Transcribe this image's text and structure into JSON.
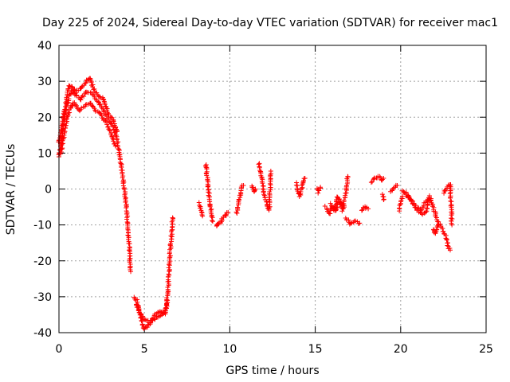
{
  "chart_data": {
    "type": "scatter",
    "title": "Day 225 of 2024, Sidereal Day-to-day VTEC variation (SDTVAR) for receiver mac1",
    "xlabel": "GPS time / hours",
    "ylabel": "SDTVAR / TECUs",
    "xlim": [
      0,
      25
    ],
    "ylim": [
      -40,
      40
    ],
    "xticks": [
      "0",
      "5",
      "10",
      "15",
      "20",
      "25"
    ],
    "yticks": [
      "-40",
      "-30",
      "-20",
      "-10",
      "0",
      "10",
      "20",
      "30",
      "40"
    ],
    "grid": true,
    "marker": "+",
    "series_color": "#ff0000",
    "series": [
      {
        "name": "SDTVAR",
        "curves": [
          [
            [
              0.0,
              9
            ],
            [
              0.1,
              12
            ],
            [
              0.25,
              17
            ],
            [
              0.4,
              22
            ],
            [
              0.6,
              26
            ],
            [
              0.8,
              27.5
            ],
            [
              1.0,
              26
            ],
            [
              1.3,
              25
            ],
            [
              1.6,
              27
            ],
            [
              1.9,
              26.5
            ],
            [
              2.2,
              25
            ],
            [
              2.5,
              23
            ],
            [
              2.8,
              20
            ],
            [
              3.1,
              18
            ],
            [
              3.4,
              14
            ],
            [
              3.6,
              8
            ],
            [
              3.8,
              1
            ],
            [
              3.95,
              -5
            ],
            [
              4.05,
              -12
            ],
            [
              4.15,
              -18
            ],
            [
              4.2,
              -23
            ]
          ],
          [
            [
              0.0,
              13
            ],
            [
              0.2,
              18
            ],
            [
              0.4,
              24
            ],
            [
              0.6,
              29
            ],
            [
              0.8,
              28
            ],
            [
              1.0,
              27
            ],
            [
              1.3,
              28
            ],
            [
              1.6,
              30
            ],
            [
              1.8,
              31
            ],
            [
              2.0,
              28
            ],
            [
              2.3,
              26
            ],
            [
              2.6,
              25
            ],
            [
              2.9,
              21
            ],
            [
              3.2,
              19
            ],
            [
              3.4,
              16
            ]
          ],
          [
            [
              0.1,
              10
            ],
            [
              0.3,
              15
            ],
            [
              0.5,
              20
            ],
            [
              0.7,
              23
            ],
            [
              0.9,
              24
            ],
            [
              1.2,
              22
            ],
            [
              1.5,
              23
            ],
            [
              1.8,
              24
            ],
            [
              2.1,
              22
            ],
            [
              2.4,
              21
            ],
            [
              2.7,
              19
            ],
            [
              3.0,
              16
            ],
            [
              3.3,
              12
            ]
          ],
          [
            [
              4.4,
              -30
            ],
            [
              4.55,
              -31
            ],
            [
              4.7,
              -34
            ],
            [
              4.85,
              -37
            ],
            [
              5.0,
              -39
            ],
            [
              5.2,
              -38
            ],
            [
              5.5,
              -36.5
            ],
            [
              5.8,
              -35.5
            ],
            [
              6.1,
              -34.5
            ],
            [
              6.3,
              -33
            ],
            [
              6.4,
              -26
            ],
            [
              6.5,
              -18
            ],
            [
              6.6,
              -12
            ],
            [
              6.65,
              -8
            ]
          ],
          [
            [
              4.5,
              -32
            ],
            [
              4.8,
              -35
            ],
            [
              5.0,
              -36.5
            ],
            [
              5.3,
              -37
            ],
            [
              5.6,
              -35
            ],
            [
              5.9,
              -34
            ],
            [
              6.2,
              -35
            ],
            [
              6.35,
              -31
            ]
          ],
          [
            [
              8.2,
              -4
            ],
            [
              8.3,
              -6
            ],
            [
              8.4,
              -7.5
            ]
          ],
          [
            [
              8.6,
              7
            ],
            [
              8.7,
              2
            ],
            [
              8.8,
              -2
            ],
            [
              8.9,
              -6
            ],
            [
              9.0,
              -9
            ]
          ],
          [
            [
              9.2,
              -10.5
            ],
            [
              9.4,
              -9.5
            ],
            [
              9.6,
              -8
            ],
            [
              9.8,
              -7
            ],
            [
              9.9,
              -6.5
            ]
          ],
          [
            [
              10.4,
              -7
            ],
            [
              10.5,
              -4
            ],
            [
              10.6,
              -2
            ],
            [
              10.7,
              0.5
            ],
            [
              10.8,
              1
            ]
          ],
          [
            [
              11.3,
              1
            ],
            [
              11.4,
              -1
            ],
            [
              11.5,
              0
            ]
          ],
          [
            [
              11.7,
              7
            ],
            [
              11.8,
              5
            ],
            [
              11.9,
              2
            ],
            [
              12.0,
              -1
            ],
            [
              12.1,
              -3
            ],
            [
              12.2,
              -5
            ],
            [
              12.3,
              -6
            ],
            [
              12.4,
              5
            ]
          ],
          [
            [
              13.9,
              1.5
            ],
            [
              14.0,
              -0.5
            ],
            [
              14.1,
              -2
            ],
            [
              14.2,
              0
            ],
            [
              14.3,
              2
            ],
            [
              14.4,
              3
            ]
          ],
          [
            [
              15.1,
              0
            ],
            [
              15.2,
              -1
            ],
            [
              15.3,
              0.5
            ]
          ],
          [
            [
              15.6,
              -5
            ],
            [
              15.8,
              -7
            ],
            [
              16.0,
              -5
            ],
            [
              16.2,
              -6
            ],
            [
              16.4,
              -3
            ],
            [
              16.6,
              -6
            ],
            [
              16.8,
              -1
            ],
            [
              16.9,
              3.5
            ]
          ],
          [
            [
              15.9,
              -4
            ],
            [
              16.1,
              -6
            ],
            [
              16.3,
              -2
            ],
            [
              16.5,
              -4
            ],
            [
              16.7,
              -5
            ]
          ],
          [
            [
              16.8,
              -8
            ],
            [
              17.0,
              -9.5
            ],
            [
              17.3,
              -9
            ],
            [
              17.6,
              -9.5
            ]
          ],
          [
            [
              17.7,
              -6
            ],
            [
              17.9,
              -5
            ],
            [
              18.1,
              -5.5
            ]
          ],
          [
            [
              18.3,
              2
            ],
            [
              18.5,
              3
            ],
            [
              18.7,
              3.5
            ],
            [
              18.9,
              2.5
            ],
            [
              19.0,
              3
            ]
          ],
          [
            [
              18.95,
              -1.5
            ],
            [
              19.0,
              -3
            ]
          ],
          [
            [
              19.4,
              -0.5
            ],
            [
              19.6,
              0
            ],
            [
              19.8,
              1
            ]
          ],
          [
            [
              19.9,
              -6
            ],
            [
              20.0,
              -4
            ],
            [
              20.1,
              -2
            ]
          ],
          [
            [
              20.1,
              -0.5
            ],
            [
              20.4,
              -2
            ],
            [
              20.7,
              -4
            ],
            [
              21.0,
              -6
            ],
            [
              21.3,
              -7
            ],
            [
              21.5,
              -6
            ],
            [
              21.7,
              -2
            ],
            [
              21.9,
              -5
            ],
            [
              22.1,
              -8
            ],
            [
              22.3,
              -10
            ],
            [
              22.5,
              -12
            ],
            [
              22.7,
              -14
            ],
            [
              22.8,
              -16.5
            ],
            [
              22.9,
              -17
            ]
          ],
          [
            [
              20.3,
              -1
            ],
            [
              20.6,
              -3
            ],
            [
              20.9,
              -5
            ],
            [
              21.2,
              -6
            ],
            [
              21.4,
              -4
            ],
            [
              21.6,
              -3
            ]
          ],
          [
            [
              21.9,
              -11
            ],
            [
              22.0,
              -12.5
            ],
            [
              22.2,
              -10
            ]
          ],
          [
            [
              22.5,
              -1
            ],
            [
              22.6,
              -0.5
            ],
            [
              22.75,
              0.5
            ],
            [
              22.9,
              1.5
            ],
            [
              22.95,
              -4.5
            ],
            [
              23.0,
              -10
            ]
          ]
        ]
      }
    ]
  }
}
